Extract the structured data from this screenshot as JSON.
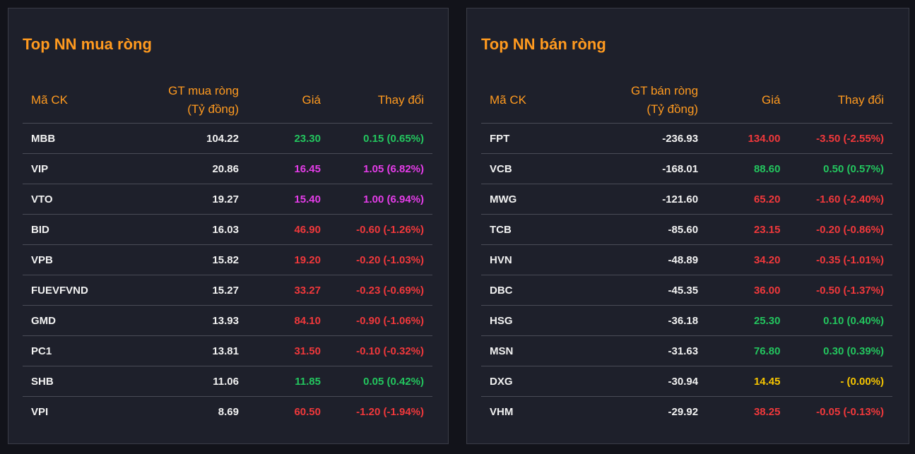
{
  "buy": {
    "title": "Top NN mua ròng",
    "headers": {
      "code": "Mã CK",
      "value_line1": "GT mua ròng",
      "value_line2": "(Tỷ đồng)",
      "price": "Giá",
      "change": "Thay đổi"
    },
    "rows": [
      {
        "code": "MBB",
        "value": "104.22",
        "price": "23.30",
        "change": "0.15 (0.65%)",
        "status": "up"
      },
      {
        "code": "VIP",
        "value": "20.86",
        "price": "16.45",
        "change": "1.05 (6.82%)",
        "status": "ceil"
      },
      {
        "code": "VTO",
        "value": "19.27",
        "price": "15.40",
        "change": "1.00 (6.94%)",
        "status": "ceil"
      },
      {
        "code": "BID",
        "value": "16.03",
        "price": "46.90",
        "change": "-0.60 (-1.26%)",
        "status": "down"
      },
      {
        "code": "VPB",
        "value": "15.82",
        "price": "19.20",
        "change": "-0.20 (-1.03%)",
        "status": "down"
      },
      {
        "code": "FUEVFVND",
        "value": "15.27",
        "price": "33.27",
        "change": "-0.23 (-0.69%)",
        "status": "down"
      },
      {
        "code": "GMD",
        "value": "13.93",
        "price": "84.10",
        "change": "-0.90 (-1.06%)",
        "status": "down"
      },
      {
        "code": "PC1",
        "value": "13.81",
        "price": "31.50",
        "change": "-0.10 (-0.32%)",
        "status": "down"
      },
      {
        "code": "SHB",
        "value": "11.06",
        "price": "11.85",
        "change": "0.05 (0.42%)",
        "status": "up"
      },
      {
        "code": "VPI",
        "value": "8.69",
        "price": "60.50",
        "change": "-1.20 (-1.94%)",
        "status": "down"
      }
    ]
  },
  "sell": {
    "title": "Top NN bán ròng",
    "headers": {
      "code": "Mã CK",
      "value_line1": "GT bán ròng",
      "value_line2": "(Tỷ đồng)",
      "price": "Giá",
      "change": "Thay đổi"
    },
    "rows": [
      {
        "code": "FPT",
        "value": "-236.93",
        "price": "134.00",
        "change": "-3.50 (-2.55%)",
        "status": "down"
      },
      {
        "code": "VCB",
        "value": "-168.01",
        "price": "88.60",
        "change": "0.50 (0.57%)",
        "status": "up"
      },
      {
        "code": "MWG",
        "value": "-121.60",
        "price": "65.20",
        "change": "-1.60 (-2.40%)",
        "status": "down"
      },
      {
        "code": "TCB",
        "value": "-85.60",
        "price": "23.15",
        "change": "-0.20 (-0.86%)",
        "status": "down"
      },
      {
        "code": "HVN",
        "value": "-48.89",
        "price": "34.20",
        "change": "-0.35 (-1.01%)",
        "status": "down"
      },
      {
        "code": "DBC",
        "value": "-45.35",
        "price": "36.00",
        "change": "-0.50 (-1.37%)",
        "status": "down"
      },
      {
        "code": "HSG",
        "value": "-36.18",
        "price": "25.30",
        "change": "0.10 (0.40%)",
        "status": "up"
      },
      {
        "code": "MSN",
        "value": "-31.63",
        "price": "76.80",
        "change": "0.30 (0.39%)",
        "status": "up"
      },
      {
        "code": "DXG",
        "value": "-30.94",
        "price": "14.45",
        "change": "- (0.00%)",
        "status": "ref"
      },
      {
        "code": "VHM",
        "value": "-29.92",
        "price": "38.25",
        "change": "-0.05 (-0.13%)",
        "status": "down"
      }
    ]
  },
  "colors": {
    "accent": "#ff9a1f",
    "up": "#23c55e",
    "down": "#f0383b",
    "ceiling": "#e43ce8",
    "reference": "#f5c400",
    "panel_bg": "#1e202b",
    "page_bg": "#12131a"
  }
}
